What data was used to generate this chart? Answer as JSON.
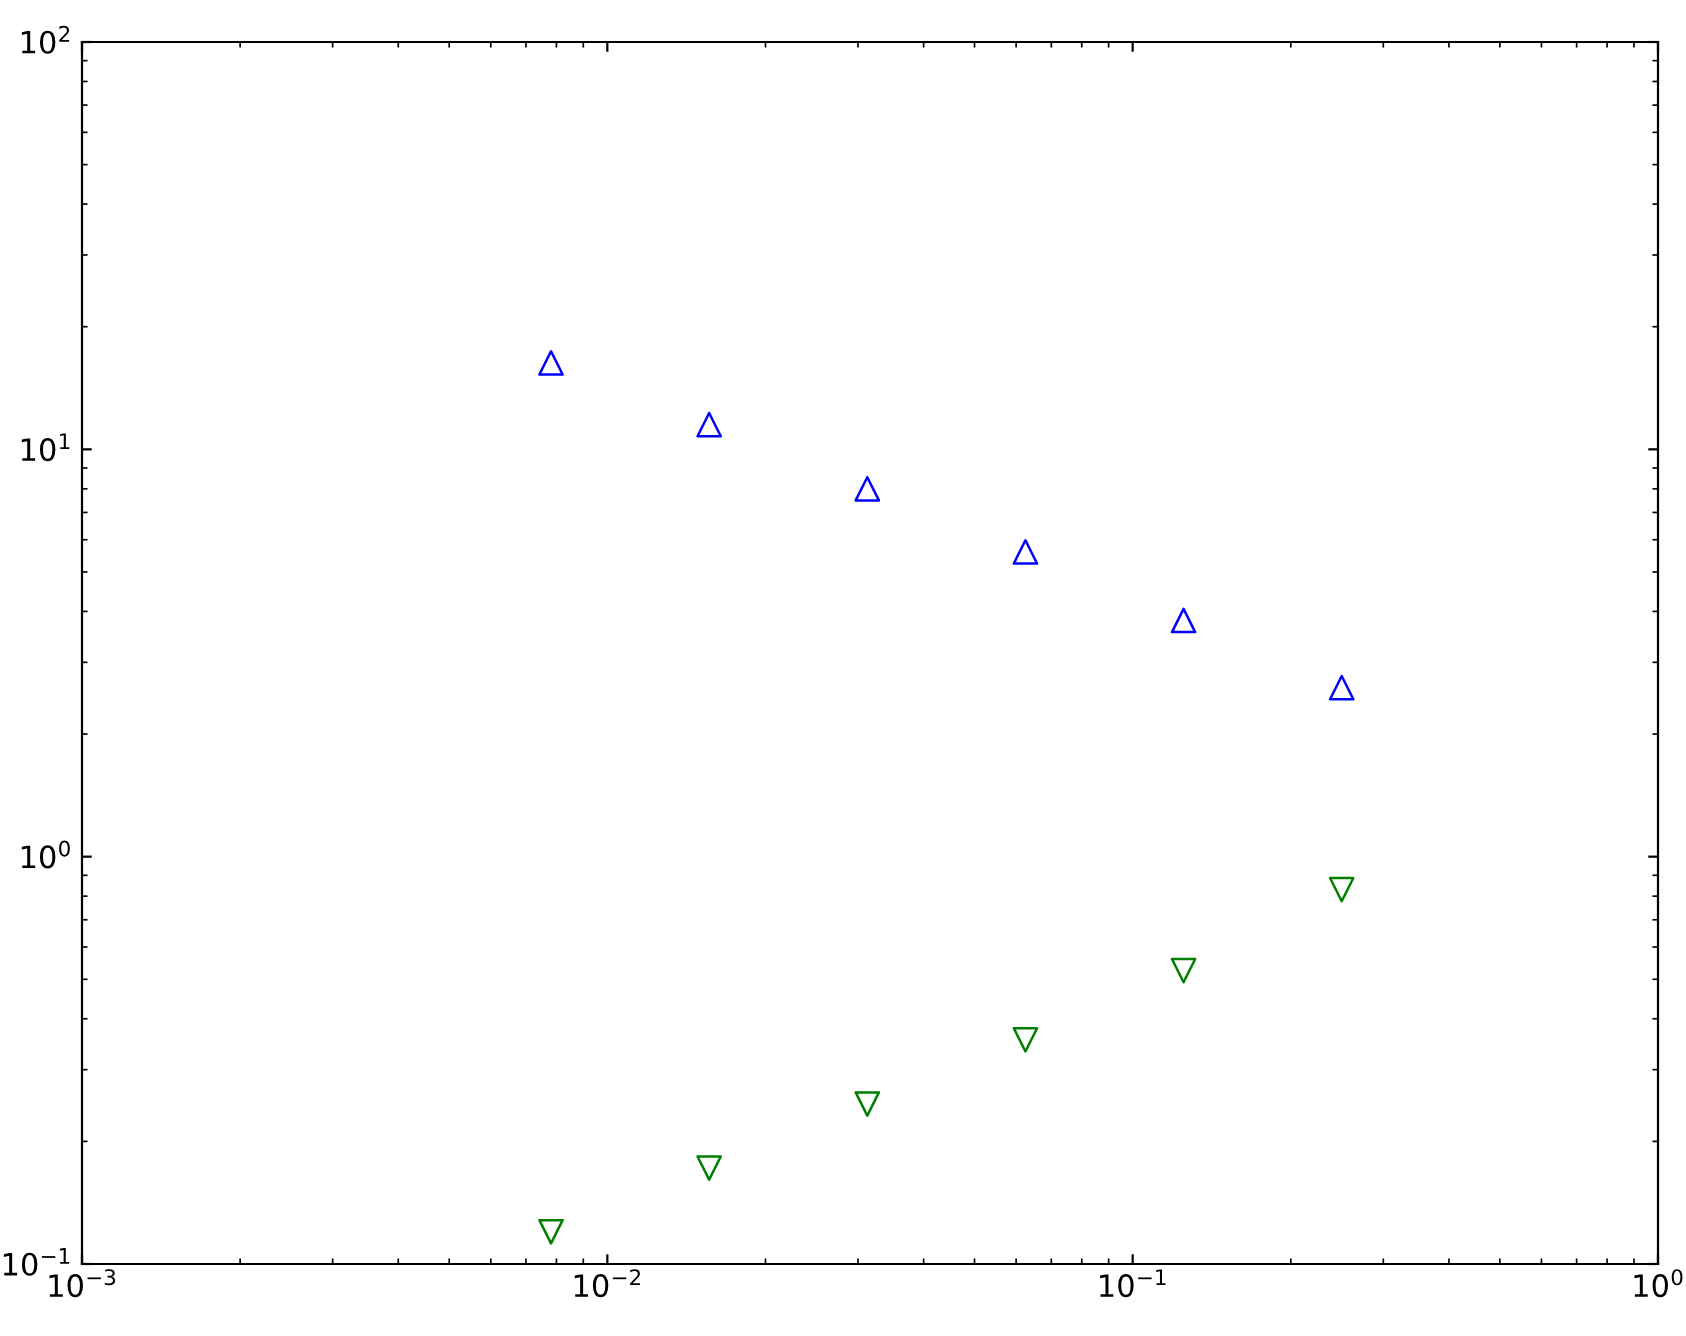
{
  "chart_data": {
    "type": "scatter",
    "log": "xy",
    "grid": false,
    "legend": false,
    "xlim": [
      0.001,
      1
    ],
    "ylim": [
      0.1,
      100
    ],
    "xticks": [
      {
        "value": 0.001,
        "label": "10$^{−3}$"
      },
      {
        "value": 0.01,
        "label": "10$^{−2}$"
      },
      {
        "value": 0.1,
        "label": "10$^{−1}$"
      },
      {
        "value": 1,
        "label": "10$^{0}$"
      }
    ],
    "yticks": [
      {
        "value": 0.1,
        "label": "10$^{−1}$"
      },
      {
        "value": 1,
        "label": "10$^{0}$"
      },
      {
        "value": 10,
        "label": "10$^{1}$"
      },
      {
        "value": 100,
        "label": "10$^{2}$"
      }
    ],
    "x": [
      0.0078125,
      0.015625,
      0.03125,
      0.0625,
      0.125,
      0.25
    ],
    "series": [
      {
        "color": "#0000ff",
        "marker": "triangle",
        "values": [
          16.3,
          11.5,
          8.0,
          5.6,
          3.8,
          2.6
        ]
      },
      {
        "color": "#008000",
        "marker": "triangle_down",
        "values": [
          0.12,
          0.172,
          0.247,
          0.355,
          0.525,
          0.83
        ]
      }
    ]
  }
}
